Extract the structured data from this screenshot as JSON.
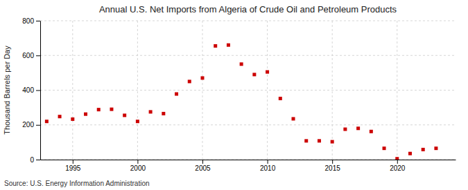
{
  "chart_data": {
    "type": "scatter",
    "title": "Annual U.S. Net Imports from Algeria of Crude Oil and Petroleum Products",
    "ylabel": "Thousand Barrels per Day",
    "source": "Source: U.S. Energy Information Administration",
    "x": [
      1993,
      1994,
      1995,
      1996,
      1997,
      1998,
      1999,
      2000,
      2001,
      2002,
      2003,
      2004,
      2005,
      2006,
      2007,
      2008,
      2009,
      2010,
      2011,
      2012,
      2013,
      2014,
      2015,
      2016,
      2017,
      2018,
      2019,
      2020,
      2021,
      2022,
      2023
    ],
    "values": [
      220,
      248,
      233,
      262,
      288,
      290,
      255,
      220,
      275,
      265,
      378,
      450,
      470,
      655,
      660,
      550,
      490,
      505,
      352,
      235,
      108,
      108,
      103,
      175,
      180,
      162,
      65,
      5,
      35,
      58,
      65
    ],
    "color": "#cc0000",
    "marker": "square",
    "xlim": [
      1992.5,
      2024.5
    ],
    "ylim": [
      0,
      800
    ],
    "xticks": [
      1995,
      2000,
      2005,
      2010,
      2015,
      2020
    ],
    "yticks": [
      0,
      200,
      400,
      600,
      800
    ],
    "grid": true
  }
}
